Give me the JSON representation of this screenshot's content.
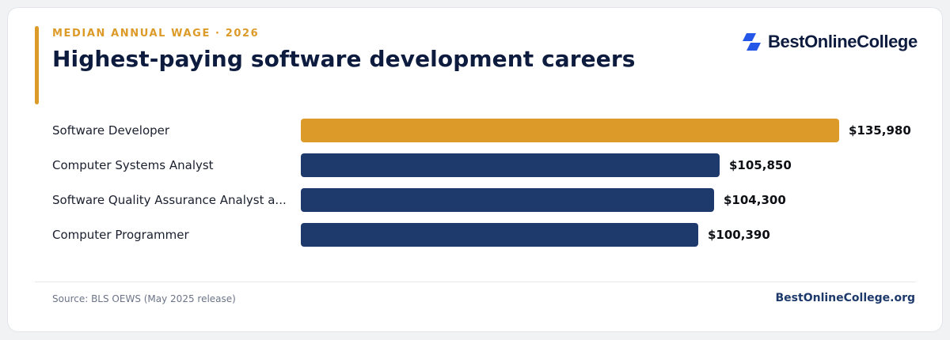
{
  "header": {
    "eyebrow": "MEDIAN ANNUAL WAGE · 2026",
    "title": "Highest-paying software development careers"
  },
  "brand": {
    "logo_text": "BestOnlineCollege",
    "logo_icon": "stacked-parallelogram-logo-icon",
    "site": "BestOnlineCollege.org"
  },
  "footer": {
    "source": "Source: BLS OEWS (May 2025 release)"
  },
  "colors": {
    "highlight": "#dc9a28",
    "bar": "#1e3a6c",
    "logo": "#2456e8",
    "text_dark": "#0d1b3e"
  },
  "chart_data": {
    "type": "bar",
    "orientation": "horizontal",
    "title": "Highest-paying software development careers",
    "subtitle": "MEDIAN ANNUAL WAGE · 2026",
    "categories": [
      "Software Developer",
      "Computer Systems Analyst",
      "Software Quality Assurance Analyst a...",
      "Computer Programmer"
    ],
    "values": [
      135980,
      105850,
      104300,
      100390
    ],
    "value_labels": [
      "$135,980",
      "$105,850",
      "$104,300",
      "$100,390"
    ],
    "highlight_index": 0,
    "xlim": [
      0,
      135980
    ],
    "grid": false,
    "legend": "none"
  }
}
